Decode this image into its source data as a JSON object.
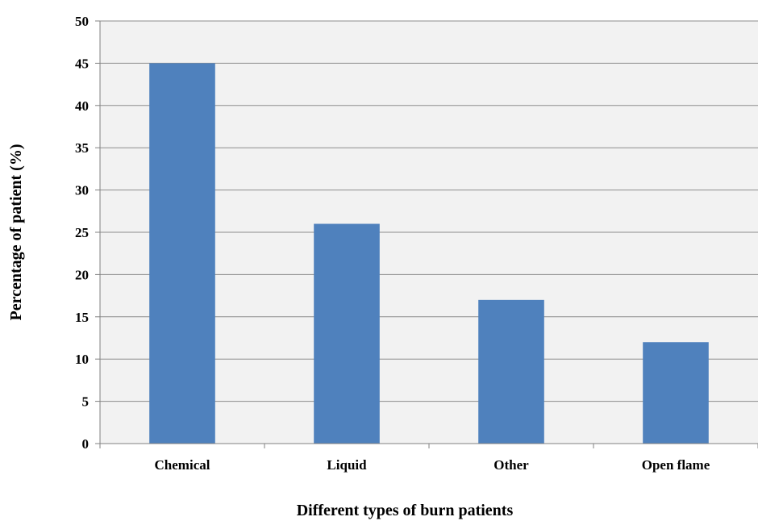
{
  "chart_data": {
    "type": "bar",
    "title": "",
    "xlabel": "Different types of burn patients",
    "ylabel": "Percentage of patient (%)",
    "categories": [
      "Chemical",
      "Liquid",
      "Other",
      "Open flame"
    ],
    "series": [
      {
        "values": [
          45,
          26,
          17,
          12
        ]
      }
    ],
    "ylim": [
      0,
      50
    ],
    "yticks": [
      "0",
      "5",
      "10",
      "15",
      "20",
      "25",
      "30",
      "35",
      "40",
      "45",
      "50"
    ],
    "grid": true,
    "legend": "none",
    "colors": {
      "bar": "#4f81bd",
      "plot_background": "#f2f2f2",
      "gridline": "#8c8c8c",
      "axis": "#808080"
    }
  }
}
